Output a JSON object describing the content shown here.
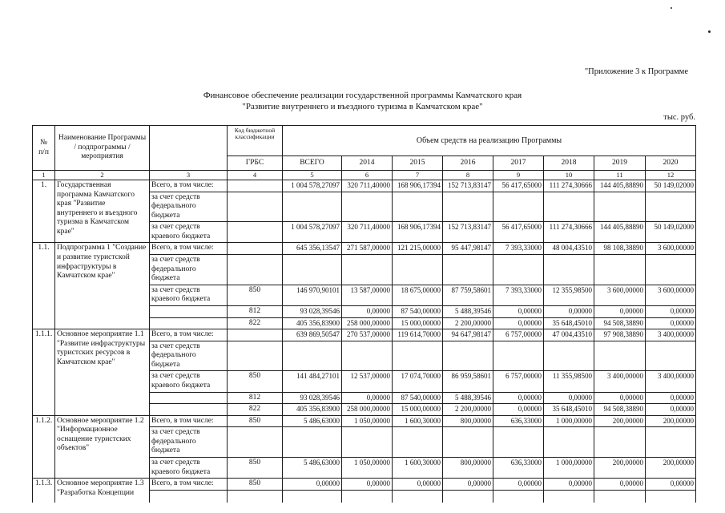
{
  "page": {
    "appendix_note": "\"Приложение 3 к Программе",
    "title_line1": "Финансовое обеспечение реализации государственной программы Камчатского края",
    "title_line2": "\"Развитие внутреннего и въездного туризма в Камчатском крае\"",
    "units_label": "тыс. руб."
  },
  "table": {
    "header": {
      "num": "№\nп/п",
      "name": "Наименование Программы / подпрограммы / мероприятия",
      "budget_code": "Код бюджетной классификации",
      "grbs": "ГРБС",
      "volume": "Объем средств на реализацию Программы",
      "total": "ВСЕГО",
      "years": [
        "2014",
        "2015",
        "2016",
        "2017",
        "2018",
        "2019",
        "2020"
      ],
      "col_numbers": [
        "1",
        "2",
        "3",
        "4",
        "5",
        "6",
        "7",
        "8",
        "9",
        "10",
        "11",
        "12"
      ]
    },
    "sections": [
      {
        "num": "1.",
        "name": "Государственная программа Камчатского края \"Развитие внутреннего и въездного туризма в Камчатском крае\"",
        "subrows": [
          {
            "label": "Всего, в том числе:",
            "grbs": "",
            "values": [
              "1 004 578,27097",
              "320 711,40000",
              "168 906,17394",
              "152 713,83147",
              "56 417,65000",
              "111 274,30666",
              "144 405,88890",
              "50 149,02000"
            ]
          },
          {
            "label": "за счет средств федерального бюджета",
            "grbs": "",
            "values": [
              "",
              "",
              "",
              "",
              "",
              "",
              "",
              ""
            ]
          },
          {
            "label": "за счет средств краевого бюджета",
            "grbs": "",
            "values": [
              "1 004 578,27097",
              "320 711,40000",
              "168 906,17394",
              "152 713,83147",
              "56 417,65000",
              "111 274,30666",
              "144 405,88890",
              "50 149,02000"
            ]
          }
        ]
      },
      {
        "num": "1.1.",
        "name": "Подпрограмма 1 \"Создание и развитие туристской инфраструктуры в Камчатском крае\"",
        "subrows": [
          {
            "label": "Всего, в том числе:",
            "grbs": "",
            "values": [
              "645 356,13547",
              "271 587,00000",
              "121 215,00000",
              "95 447,98147",
              "7 393,33000",
              "48 004,43510",
              "98 108,38890",
              "3 600,00000"
            ]
          },
          {
            "label": "за счет средств федерального бюджета",
            "grbs": "",
            "values": [
              "",
              "",
              "",
              "",
              "",
              "",
              "",
              ""
            ]
          },
          {
            "label": "за счет средств краевого бюджета",
            "grbs": "850",
            "values": [
              "146 970,90101",
              "13 587,00000",
              "18 675,00000",
              "87 759,58601",
              "7 393,33000",
              "12 355,98500",
              "3 600,00000",
              "3 600,00000"
            ]
          },
          {
            "label": "",
            "grbs": "812",
            "values": [
              "93 028,39546",
              "0,00000",
              "87 540,00000",
              "5 488,39546",
              "0,00000",
              "0,00000",
              "0,00000",
              "0,00000"
            ]
          },
          {
            "label": "",
            "grbs": "822",
            "values": [
              "405 356,83900",
              "258 000,00000",
              "15 000,00000",
              "2 200,00000",
              "0,00000",
              "35 648,45010",
              "94 508,38890",
              "0,00000"
            ]
          }
        ]
      },
      {
        "num": "1.1.1.",
        "name": "Основное мероприятие 1.1 \"Развитие инфраструктуры туристских ресурсов в Камчатском крае\"",
        "subrows": [
          {
            "label": "Всего, в том числе:",
            "grbs": "",
            "values": [
              "639 869,50547",
              "270 537,00000",
              "119 614,70000",
              "94 647,98147",
              "6 757,00000",
              "47 004,43510",
              "97 908,38890",
              "3 400,00000"
            ]
          },
          {
            "label": "за счет средств федерального бюджета",
            "grbs": "",
            "values": [
              "",
              "",
              "",
              "",
              "",
              "",
              "",
              ""
            ]
          },
          {
            "label": "за счет средств краевого бюджета",
            "grbs": "850",
            "values": [
              "141 484,27101",
              "12 537,00000",
              "17 074,70000",
              "86 959,58601",
              "6 757,00000",
              "11 355,98500",
              "3 400,00000",
              "3 400,00000"
            ]
          },
          {
            "label": "",
            "grbs": "812",
            "values": [
              "93 028,39546",
              "0,00000",
              "87 540,00000",
              "5 488,39546",
              "0,00000",
              "0,00000",
              "0,00000",
              "0,00000"
            ]
          },
          {
            "label": "",
            "grbs": "822",
            "values": [
              "405 356,83900",
              "258 000,00000",
              "15 000,00000",
              "2 200,00000",
              "0,00000",
              "35 648,45010",
              "94 508,38890",
              "0,00000"
            ]
          }
        ]
      },
      {
        "num": "1.1.2.",
        "name": "Основное мероприятие 1.2 \"Информационное оснащение туристских объектов\"",
        "subrows": [
          {
            "label": "Всего, в том числе:",
            "grbs": "850",
            "values": [
              "5 486,63000",
              "1 050,00000",
              "1 600,30000",
              "800,00000",
              "636,33000",
              "1 000,00000",
              "200,00000",
              "200,00000"
            ]
          },
          {
            "label": "за счет средств федерального бюджета",
            "grbs": "",
            "values": [
              "",
              "",
              "",
              "",
              "",
              "",
              "",
              ""
            ]
          },
          {
            "label": "за счет средств краевого бюджета",
            "grbs": "850",
            "values": [
              "5 486,63000",
              "1 050,00000",
              "1 600,30000",
              "800,00000",
              "636,33000",
              "1 000,00000",
              "200,00000",
              "200,00000"
            ]
          }
        ]
      },
      {
        "num": "1.1.3.",
        "name": "Основное мероприятие 1.3 \"Разработка Концепции",
        "subrows": [
          {
            "label": "Всего, в том числе:",
            "grbs": "850",
            "values": [
              "0,00000",
              "0,00000",
              "0,00000",
              "0,00000",
              "0,00000",
              "0,00000",
              "0,00000",
              "0,00000"
            ]
          }
        ]
      }
    ]
  }
}
